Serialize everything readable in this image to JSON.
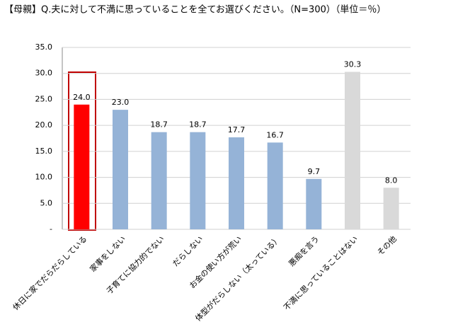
{
  "chart_data": {
    "type": "bar",
    "title": "【母親】Q.夫に対して不満に思っていることを全てお選びください。（N=300）（単位＝％）",
    "categories": [
      "休日に家でだらだらしている",
      "家事をしない",
      "子育てに協力的でない",
      "だらしない",
      "お金の使い方が荒い",
      "体型がだらしない（太っている）",
      "悪痴を言う",
      "不満に思っていることはない",
      "その他"
    ],
    "values": [
      24.0,
      23.0,
      18.7,
      18.7,
      17.7,
      16.7,
      9.7,
      30.3,
      8.0
    ],
    "value_labels": [
      "24.0",
      "23.0",
      "18.7",
      "18.7",
      "17.7",
      "16.7",
      "9.7",
      "30.3",
      "8.0"
    ],
    "colors": [
      "#ff0000",
      "#95b3d7",
      "#95b3d7",
      "#95b3d7",
      "#95b3d7",
      "#95b3d7",
      "#95b3d7",
      "#d9d9d9",
      "#d9d9d9"
    ],
    "ylim": [
      0,
      35
    ],
    "yticks": [
      {
        "value": 0,
        "label": "-"
      },
      {
        "value": 5,
        "label": "5.0"
      },
      {
        "value": 10,
        "label": "10.0"
      },
      {
        "value": 15,
        "label": "15.0"
      },
      {
        "value": 20,
        "label": "20.0"
      },
      {
        "value": 25,
        "label": "25.0"
      },
      {
        "value": 30,
        "label": "30.0"
      },
      {
        "value": 35,
        "label": "35.0"
      }
    ],
    "grid": true
  }
}
